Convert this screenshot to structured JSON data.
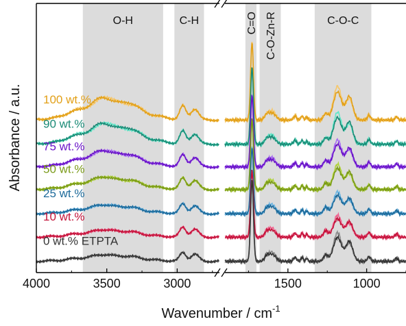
{
  "chart_data": {
    "type": "line",
    "xlabel": "Wavenumber / cm",
    "xlabel_sup": "-1",
    "ylabel": "Absorbance / a.u.",
    "x_reversed": true,
    "axis_break": [
      2700,
      1900
    ],
    "xlim_left": [
      4000,
      2700
    ],
    "xlim_right": [
      1900,
      750
    ],
    "x_ticks": [
      4000,
      3500,
      3000,
      1500,
      1000
    ],
    "x_tick_labels": [
      "4000",
      "3500",
      "3000",
      "1500",
      "1000"
    ],
    "grid": false,
    "bands": [
      {
        "label": "O-H",
        "from": 3670,
        "to": 3100,
        "vertical": false
      },
      {
        "label": "C-H",
        "from": 3020,
        "to": 2810,
        "vertical": false
      },
      {
        "label": "C=O",
        "from": 1770,
        "to": 1700,
        "vertical": true
      },
      {
        "label": "C-O-Zn-R",
        "from": 1680,
        "to": 1545,
        "vertical": true
      },
      {
        "label": "C-O-C",
        "from": 1330,
        "to": 970,
        "vertical": false
      }
    ],
    "series": [
      {
        "name": "100 wt.%",
        "color": "#e2a018",
        "light": "#f6c76a",
        "baseline": 1.84,
        "oh": 0.3,
        "ch": 0.28,
        "co": 1.0,
        "coc": 0.4
      },
      {
        "name": "90 wt.%",
        "color": "#1a8a76",
        "light": "#5ee8c8",
        "baseline": 1.53,
        "oh": 0.28,
        "ch": 0.26,
        "co": 0.98,
        "coc": 0.38
      },
      {
        "name": "75 wt.%",
        "color": "#6a14c8",
        "light": "#a86cf2",
        "baseline": 1.24,
        "oh": 0.22,
        "ch": 0.24,
        "co": 0.92,
        "coc": 0.32
      },
      {
        "name": "50 wt.%",
        "color": "#7a9a18",
        "light": "#b0d23a",
        "baseline": 0.95,
        "oh": 0.17,
        "ch": 0.23,
        "co": 0.9,
        "coc": 0.3
      },
      {
        "name": "25 wt.%",
        "color": "#1d6a9a",
        "light": "#6ab4e2",
        "baseline": 0.64,
        "oh": 0.12,
        "ch": 0.2,
        "co": 0.85,
        "coc": 0.26
      },
      {
        "name": "10 wt.%",
        "color": "#c4143a",
        "light": "#f06490",
        "baseline": 0.34,
        "oh": 0.1,
        "ch": 0.2,
        "co": 0.85,
        "coc": 0.26
      },
      {
        "name": "0 wt.% ETPTA",
        "color": "#333333",
        "light": "#8a8a8a",
        "baseline": 0.03,
        "oh": 0.09,
        "ch": 0.18,
        "co": 1.05,
        "coc": 0.34
      }
    ]
  }
}
